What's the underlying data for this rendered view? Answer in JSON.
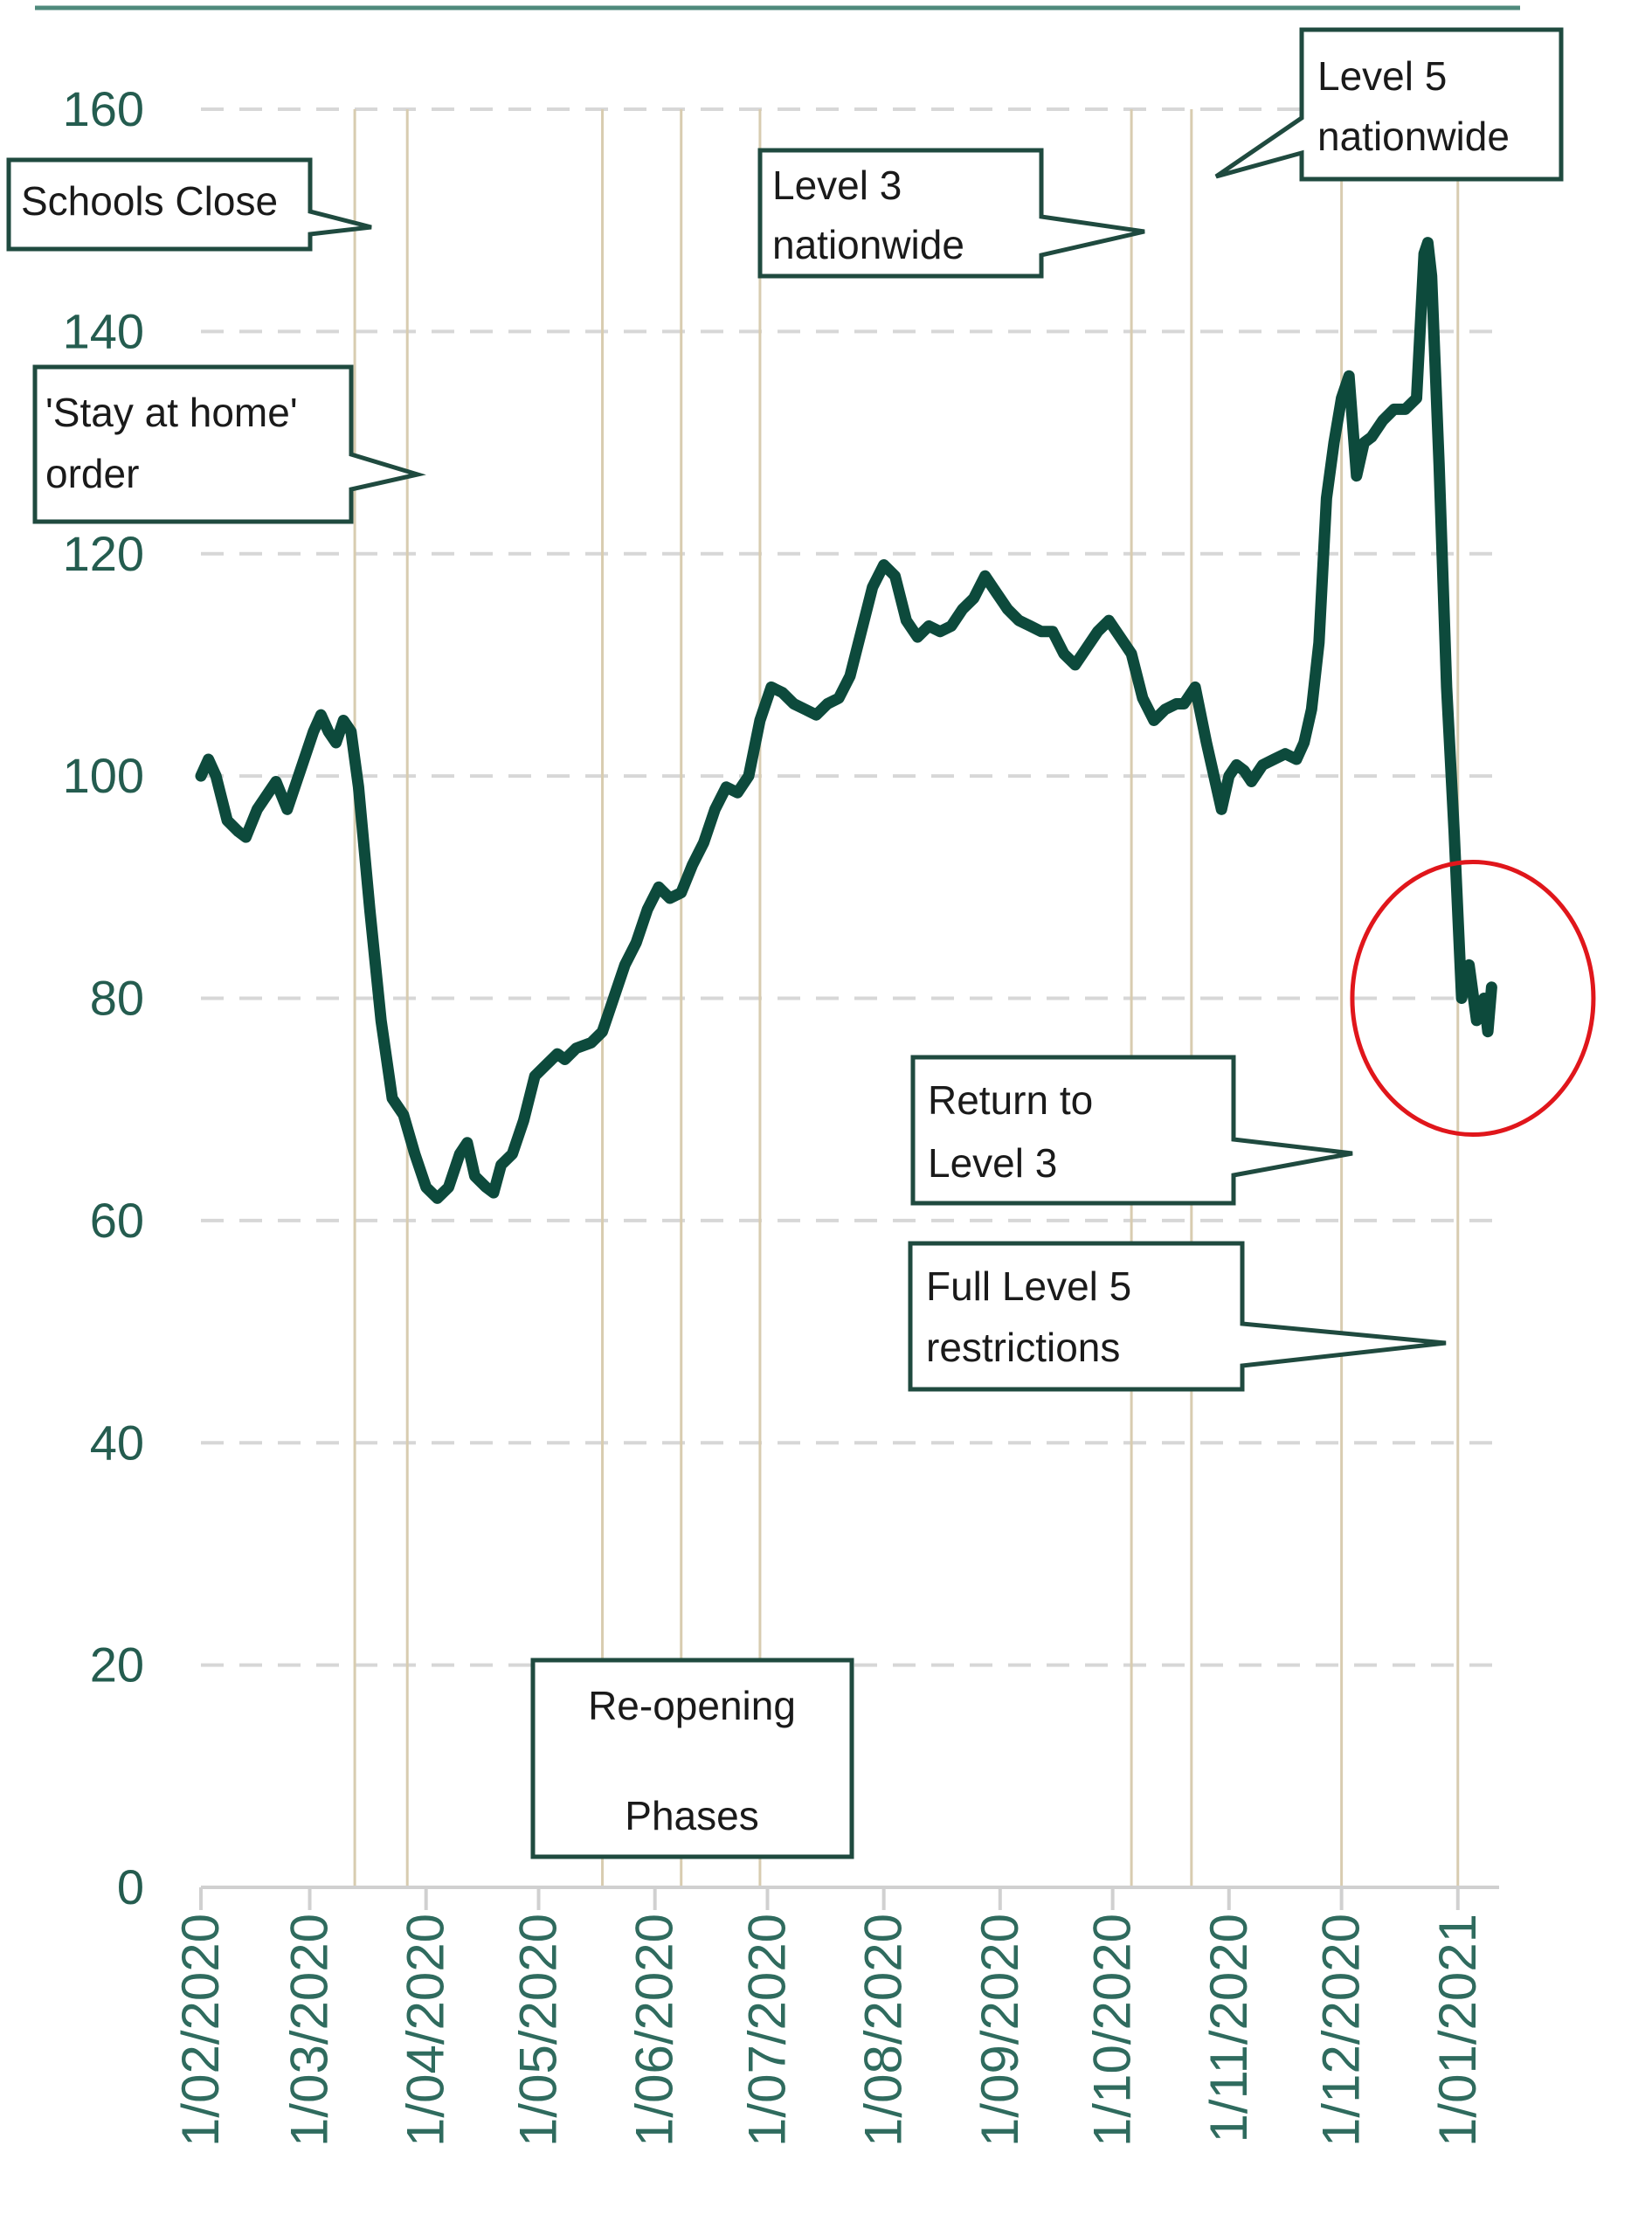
{
  "chart_data": {
    "type": "line",
    "title": "",
    "xlabel": "",
    "ylabel": "",
    "ylim": [
      0,
      160
    ],
    "yticks": [
      0,
      20,
      40,
      60,
      80,
      100,
      120,
      140,
      160
    ],
    "x_range": [
      "2020-02-01",
      "2021-01-12"
    ],
    "x_tick_labels": [
      {
        "date": "2020-02-01",
        "label": "1/02/2020"
      },
      {
        "date": "2020-03-01",
        "label": "1/03/2020"
      },
      {
        "date": "2020-04-01",
        "label": "1/04/2020"
      },
      {
        "date": "2020-05-01",
        "label": "1/05/2020"
      },
      {
        "date": "2020-06-01",
        "label": "1/06/2020"
      },
      {
        "date": "2020-07-01",
        "label": "1/07/2020"
      },
      {
        "date": "2020-08-01",
        "label": "1/08/2020"
      },
      {
        "date": "2020-09-01",
        "label": "1/09/2020"
      },
      {
        "date": "2020-10-01",
        "label": "1/10/2020"
      },
      {
        "date": "2020-11-01",
        "label": "1/11/2020"
      },
      {
        "date": "2020-12-01",
        "label": "1/12/2020"
      },
      {
        "date": "2021-01-01",
        "label": "1/01/2021"
      }
    ],
    "grid": true,
    "line_color": "#0d4a3c",
    "highlight_circle": {
      "x": "2021-01-05",
      "y": 80,
      "color": "#e0161b"
    },
    "event_lines": [
      "2020-03-13",
      "2020-03-27",
      "2020-05-18",
      "2020-06-08",
      "2020-06-29",
      "2020-10-06",
      "2020-10-22",
      "2020-12-01",
      "2021-01-01"
    ],
    "series": [
      {
        "points": [
          [
            "2020-02-01",
            100
          ],
          [
            "2020-02-03",
            101.5
          ],
          [
            "2020-02-05",
            100
          ],
          [
            "2020-02-08",
            96
          ],
          [
            "2020-02-11",
            95
          ],
          [
            "2020-02-13",
            94.5
          ],
          [
            "2020-02-16",
            97
          ],
          [
            "2020-02-19",
            98.5
          ],
          [
            "2020-02-21",
            99.5
          ],
          [
            "2020-02-24",
            97
          ],
          [
            "2020-02-27",
            100
          ],
          [
            "2020-03-02",
            104
          ],
          [
            "2020-03-04",
            105.5
          ],
          [
            "2020-03-06",
            104
          ],
          [
            "2020-03-08",
            103
          ],
          [
            "2020-03-10",
            105
          ],
          [
            "2020-03-12",
            104
          ],
          [
            "2020-03-14",
            99
          ],
          [
            "2020-03-17",
            88
          ],
          [
            "2020-03-20",
            78
          ],
          [
            "2020-03-23",
            71
          ],
          [
            "2020-03-26",
            69.5
          ],
          [
            "2020-03-29",
            66
          ],
          [
            "2020-04-01",
            63
          ],
          [
            "2020-04-04",
            62
          ],
          [
            "2020-04-07",
            63
          ],
          [
            "2020-04-10",
            66
          ],
          [
            "2020-04-12",
            67
          ],
          [
            "2020-04-14",
            64
          ],
          [
            "2020-04-17",
            63
          ],
          [
            "2020-04-19",
            62.5
          ],
          [
            "2020-04-21",
            65
          ],
          [
            "2020-04-24",
            66
          ],
          [
            "2020-04-27",
            69
          ],
          [
            "2020-04-30",
            73
          ],
          [
            "2020-05-03",
            74
          ],
          [
            "2020-05-06",
            75
          ],
          [
            "2020-05-08",
            74.5
          ],
          [
            "2020-05-11",
            75.5
          ],
          [
            "2020-05-15",
            76
          ],
          [
            "2020-05-18",
            77
          ],
          [
            "2020-05-21",
            80
          ],
          [
            "2020-05-24",
            83
          ],
          [
            "2020-05-27",
            85
          ],
          [
            "2020-05-30",
            88
          ],
          [
            "2020-06-02",
            90
          ],
          [
            "2020-06-05",
            89
          ],
          [
            "2020-06-08",
            89.5
          ],
          [
            "2020-06-11",
            92
          ],
          [
            "2020-06-14",
            94
          ],
          [
            "2020-06-17",
            97
          ],
          [
            "2020-06-20",
            99
          ],
          [
            "2020-06-23",
            98.5
          ],
          [
            "2020-06-26",
            100
          ],
          [
            "2020-06-29",
            105
          ],
          [
            "2020-07-02",
            108
          ],
          [
            "2020-07-05",
            107.5
          ],
          [
            "2020-07-08",
            106.5
          ],
          [
            "2020-07-11",
            106
          ],
          [
            "2020-07-14",
            105.5
          ],
          [
            "2020-07-17",
            106.5
          ],
          [
            "2020-07-20",
            107
          ],
          [
            "2020-07-23",
            109
          ],
          [
            "2020-07-26",
            113
          ],
          [
            "2020-07-29",
            117
          ],
          [
            "2020-08-01",
            119
          ],
          [
            "2020-08-04",
            118
          ],
          [
            "2020-08-07",
            114
          ],
          [
            "2020-08-10",
            112.5
          ],
          [
            "2020-08-13",
            113.5
          ],
          [
            "2020-08-16",
            113
          ],
          [
            "2020-08-19",
            113.5
          ],
          [
            "2020-08-22",
            115
          ],
          [
            "2020-08-25",
            116
          ],
          [
            "2020-08-28",
            118
          ],
          [
            "2020-08-31",
            116.5
          ],
          [
            "2020-09-03",
            115
          ],
          [
            "2020-09-06",
            114
          ],
          [
            "2020-09-09",
            113.5
          ],
          [
            "2020-09-12",
            113
          ],
          [
            "2020-09-15",
            113
          ],
          [
            "2020-09-18",
            111
          ],
          [
            "2020-09-21",
            110
          ],
          [
            "2020-09-24",
            111.5
          ],
          [
            "2020-09-27",
            113
          ],
          [
            "2020-09-30",
            114
          ],
          [
            "2020-10-03",
            112.5
          ],
          [
            "2020-10-06",
            111
          ],
          [
            "2020-10-09",
            107
          ],
          [
            "2020-10-12",
            105
          ],
          [
            "2020-10-15",
            106
          ],
          [
            "2020-10-18",
            106.5
          ],
          [
            "2020-10-20",
            106.5
          ],
          [
            "2020-10-23",
            108
          ],
          [
            "2020-10-26",
            103
          ],
          [
            "2020-10-28",
            100
          ],
          [
            "2020-10-30",
            97
          ],
          [
            "2020-11-01",
            100
          ],
          [
            "2020-11-03",
            101
          ],
          [
            "2020-11-05",
            100.5
          ],
          [
            "2020-11-07",
            99.5
          ],
          [
            "2020-11-10",
            101
          ],
          [
            "2020-11-13",
            101.5
          ],
          [
            "2020-11-16",
            102
          ],
          [
            "2020-11-19",
            101.5
          ],
          [
            "2020-11-21",
            103
          ],
          [
            "2020-11-23",
            106
          ],
          [
            "2020-11-25",
            112
          ],
          [
            "2020-11-27",
            125
          ],
          [
            "2020-11-29",
            130
          ],
          [
            "2020-12-01",
            134
          ],
          [
            "2020-12-03",
            136
          ],
          [
            "2020-12-05",
            127
          ],
          [
            "2020-12-07",
            130
          ],
          [
            "2020-12-09",
            130.5
          ],
          [
            "2020-12-12",
            132
          ],
          [
            "2020-12-15",
            133
          ],
          [
            "2020-12-18",
            133
          ],
          [
            "2020-12-21",
            134
          ],
          [
            "2020-12-23",
            147
          ],
          [
            "2020-12-24",
            148
          ],
          [
            "2020-12-25",
            145
          ],
          [
            "2020-12-27",
            128
          ],
          [
            "2020-12-29",
            108
          ],
          [
            "2020-12-31",
            95
          ],
          [
            "2021-01-02",
            80
          ],
          [
            "2021-01-04",
            83
          ],
          [
            "2021-01-06",
            78
          ],
          [
            "2021-01-08",
            80
          ],
          [
            "2021-01-09",
            77
          ],
          [
            "2021-01-10",
            81
          ]
        ]
      }
    ],
    "annotations": [
      {
        "id": "schools-close",
        "lines": [
          "Schools Close"
        ]
      },
      {
        "id": "stay-at-home",
        "lines": [
          "'Stay  at  home'",
          "order"
        ]
      },
      {
        "id": "level3-nationwide",
        "lines": [
          "Level 3",
          "nationwide"
        ]
      },
      {
        "id": "level5-nationwide",
        "lines": [
          "Level 5",
          "nationwide"
        ]
      },
      {
        "id": "return-level3",
        "lines": [
          "Return to",
          "Level 3"
        ]
      },
      {
        "id": "full-level5",
        "lines": [
          "Full Level 5",
          "restrictions"
        ]
      },
      {
        "id": "reopening-phases",
        "lines": [
          "Re-opening",
          "Phases"
        ]
      }
    ]
  }
}
